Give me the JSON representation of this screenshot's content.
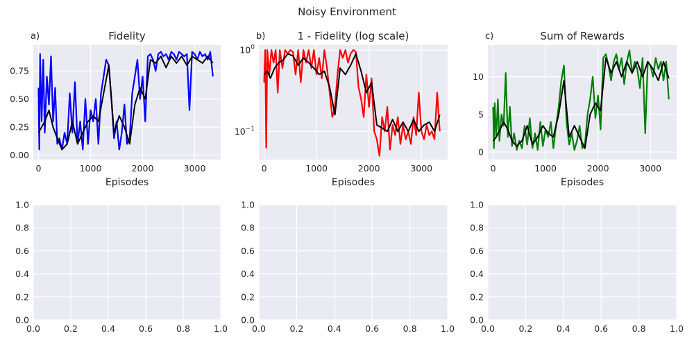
{
  "figure": {
    "suptitle": "Noisy Environment"
  },
  "colors": {
    "axes_bg": "#EAEAF2",
    "grid": "#FFFFFF",
    "fidelity": "#0000FF",
    "infidelity": "#FF0000",
    "rewards": "#008000",
    "smoothed": "#000000"
  },
  "chart_data": [
    {
      "type": "line",
      "corner": "a)",
      "title": "Fidelity",
      "xlabel": "Episodes",
      "xlim": [
        -100,
        3500
      ],
      "ylim": [
        -0.04,
        0.98
      ],
      "yscale": "linear",
      "xticks": [
        0,
        1000,
        2000,
        3000
      ],
      "yticks": [
        0.0,
        0.25,
        0.5,
        0.75
      ],
      "ytick_labels": [
        "0.00",
        "0.25",
        "0.50",
        "0.75"
      ],
      "series": [
        {
          "color": "#0000FF",
          "x": [
            0,
            15,
            30,
            60,
            90,
            120,
            160,
            200,
            240,
            280,
            320,
            360,
            400,
            450,
            500,
            550,
            600,
            650,
            700,
            750,
            800,
            850,
            900,
            950,
            1000,
            1050,
            1100,
            1150,
            1200,
            1250,
            1300,
            1350,
            1400,
            1450,
            1500,
            1550,
            1600,
            1650,
            1700,
            1750,
            1800,
            1850,
            1900,
            1950,
            2000,
            2050,
            2100,
            2150,
            2200,
            2250,
            2300,
            2350,
            2400,
            2450,
            2500,
            2550,
            2600,
            2650,
            2700,
            2750,
            2800,
            2850,
            2900,
            2950,
            3000,
            3050,
            3100,
            3150,
            3200,
            3250,
            3300,
            3350
          ],
          "y": [
            0.6,
            0.05,
            0.9,
            0.3,
            0.85,
            0.2,
            0.7,
            0.45,
            0.88,
            0.3,
            0.6,
            0.1,
            0.15,
            0.05,
            0.2,
            0.1,
            0.55,
            0.2,
            0.65,
            0.1,
            0.3,
            0.05,
            0.5,
            0.1,
            0.4,
            0.3,
            0.5,
            0.1,
            0.55,
            0.7,
            0.85,
            0.8,
            0.5,
            0.15,
            0.3,
            0.05,
            0.2,
            0.45,
            0.1,
            0.15,
            0.55,
            0.7,
            0.85,
            0.5,
            0.7,
            0.3,
            0.88,
            0.9,
            0.85,
            0.75,
            0.9,
            0.92,
            0.88,
            0.9,
            0.85,
            0.92,
            0.9,
            0.85,
            0.92,
            0.9,
            0.88,
            0.9,
            0.4,
            0.92,
            0.9,
            0.85,
            0.92,
            0.88,
            0.9,
            0.85,
            0.92,
            0.7
          ]
        },
        {
          "color": "#000000",
          "x": [
            0,
            60,
            120,
            200,
            280,
            360,
            450,
            550,
            650,
            750,
            850,
            950,
            1050,
            1150,
            1250,
            1350,
            1450,
            1550,
            1650,
            1750,
            1850,
            1950,
            2050,
            2150,
            2250,
            2350,
            2450,
            2550,
            2650,
            2750,
            2850,
            2950,
            3050,
            3150,
            3250,
            3350
          ],
          "y": [
            0.2,
            0.25,
            0.3,
            0.4,
            0.25,
            0.15,
            0.05,
            0.1,
            0.3,
            0.1,
            0.2,
            0.3,
            0.35,
            0.3,
            0.55,
            0.8,
            0.2,
            0.35,
            0.25,
            0.1,
            0.45,
            0.6,
            0.5,
            0.85,
            0.82,
            0.88,
            0.78,
            0.88,
            0.82,
            0.88,
            0.8,
            0.88,
            0.85,
            0.82,
            0.88,
            0.82
          ]
        }
      ]
    },
    {
      "type": "line",
      "corner": "b)",
      "title": "1 - Fidelity (log scale)",
      "xlabel": "Episodes",
      "xlim": [
        -100,
        3500
      ],
      "ylim": [
        0.045,
        1.15
      ],
      "yscale": "log",
      "xticks": [
        0,
        1000,
        2000,
        3000
      ],
      "yticks": [
        0.1,
        1
      ],
      "ytick_labels": [
        "10^-1",
        "10^0"
      ],
      "series": [
        {
          "color": "#FF0000",
          "x": [
            0,
            20,
            40,
            60,
            100,
            140,
            180,
            220,
            260,
            300,
            350,
            400,
            450,
            500,
            550,
            600,
            650,
            700,
            750,
            800,
            850,
            900,
            950,
            1000,
            1050,
            1100,
            1150,
            1200,
            1250,
            1300,
            1350,
            1400,
            1450,
            1500,
            1550,
            1600,
            1650,
            1700,
            1750,
            1800,
            1850,
            1900,
            1950,
            2000,
            2050,
            2100,
            2150,
            2200,
            2250,
            2300,
            2350,
            2400,
            2450,
            2500,
            2550,
            2600,
            2650,
            2700,
            2750,
            2800,
            2850,
            2900,
            2950,
            3000,
            3050,
            3100,
            3150,
            3200,
            3250,
            3300,
            3350
          ],
          "y": [
            0.4,
            1.0,
            0.063,
            1.0,
            0.5,
            1.0,
            0.7,
            1.0,
            0.3,
            1.0,
            0.6,
            1.0,
            0.9,
            1.0,
            0.95,
            0.5,
            1.0,
            0.4,
            1.0,
            0.7,
            1.0,
            0.6,
            1.0,
            0.5,
            0.8,
            0.45,
            1.0,
            0.6,
            0.3,
            0.15,
            0.2,
            0.5,
            1.0,
            0.8,
            1.0,
            0.7,
            0.9,
            1.0,
            0.95,
            0.35,
            0.25,
            0.15,
            0.5,
            0.2,
            0.45,
            0.1,
            0.08,
            0.05,
            0.15,
            0.1,
            0.2,
            0.06,
            0.12,
            0.09,
            0.15,
            0.07,
            0.12,
            0.08,
            0.1,
            0.07,
            0.15,
            0.09,
            0.3,
            0.1,
            0.08,
            0.12,
            0.09,
            0.1,
            0.08,
            0.3,
            0.1
          ]
        },
        {
          "color": "#000000",
          "x": [
            0,
            60,
            120,
            200,
            280,
            360,
            450,
            550,
            650,
            750,
            850,
            950,
            1050,
            1150,
            1250,
            1350,
            1450,
            1550,
            1650,
            1750,
            1850,
            1950,
            2050,
            2150,
            2250,
            2350,
            2450,
            2550,
            2650,
            2750,
            2850,
            2950,
            3050,
            3150,
            3250,
            3350
          ],
          "y": [
            0.5,
            0.55,
            0.45,
            0.6,
            0.7,
            0.75,
            0.9,
            0.85,
            0.65,
            0.8,
            0.7,
            0.6,
            0.5,
            0.55,
            0.35,
            0.16,
            0.6,
            0.5,
            0.65,
            0.9,
            0.55,
            0.3,
            0.4,
            0.12,
            0.11,
            0.1,
            0.14,
            0.1,
            0.13,
            0.1,
            0.14,
            0.1,
            0.12,
            0.13,
            0.1,
            0.16
          ]
        }
      ]
    },
    {
      "type": "line",
      "corner": "c)",
      "title": "Sum of Rewards",
      "xlabel": "Episodes",
      "xlim": [
        -100,
        3500
      ],
      "ylim": [
        -1.0,
        14.2
      ],
      "yscale": "linear",
      "xticks": [
        0,
        1000,
        2000,
        3000
      ],
      "yticks": [
        0,
        5,
        10
      ],
      "ytick_labels": [
        "0",
        "5",
        "10"
      ],
      "series": [
        {
          "color": "#008000",
          "x": [
            0,
            15,
            30,
            60,
            90,
            120,
            160,
            200,
            240,
            280,
            320,
            360,
            400,
            450,
            500,
            550,
            600,
            650,
            700,
            750,
            800,
            850,
            900,
            950,
            1000,
            1050,
            1100,
            1150,
            1200,
            1250,
            1300,
            1350,
            1400,
            1450,
            1500,
            1550,
            1600,
            1650,
            1700,
            1750,
            1800,
            1850,
            1900,
            1950,
            2000,
            2050,
            2100,
            2150,
            2200,
            2250,
            2300,
            2350,
            2400,
            2450,
            2500,
            2550,
            2600,
            2650,
            2700,
            2750,
            2800,
            2850,
            2900,
            2950,
            3000,
            3050,
            3100,
            3150,
            3200,
            3250,
            3300,
            3350
          ],
          "y": [
            6.0,
            0.5,
            6.5,
            2.0,
            7.0,
            1.5,
            5.0,
            3.5,
            10.5,
            2.0,
            6.0,
            0.8,
            2.5,
            0.3,
            1.5,
            0.5,
            3.5,
            1.0,
            4.5,
            0.5,
            2.5,
            0.3,
            4.0,
            0.8,
            3.0,
            2.0,
            4.0,
            0.5,
            3.5,
            6.0,
            9.5,
            11.5,
            4.0,
            1.0,
            2.5,
            0.3,
            1.5,
            3.5,
            0.5,
            1.0,
            5.0,
            7.0,
            10.0,
            4.5,
            7.5,
            3.0,
            12.5,
            13.0,
            11.5,
            9.5,
            12.0,
            13.0,
            11.0,
            12.5,
            9.0,
            12.0,
            13.5,
            10.5,
            12.0,
            11.0,
            8.5,
            12.5,
            2.5,
            12.0,
            11.5,
            10.0,
            12.5,
            11.0,
            12.0,
            9.5,
            12.0,
            7.0
          ]
        },
        {
          "color": "#000000",
          "x": [
            0,
            60,
            120,
            200,
            280,
            360,
            450,
            550,
            650,
            750,
            850,
            950,
            1050,
            1150,
            1250,
            1350,
            1450,
            1550,
            1650,
            1750,
            1850,
            1950,
            2050,
            2150,
            2250,
            2350,
            2450,
            2550,
            2650,
            2750,
            2850,
            2950,
            3050,
            3150,
            3250,
            3350
          ],
          "y": [
            1.5,
            2.0,
            2.8,
            4.0,
            3.0,
            1.5,
            0.8,
            1.5,
            3.5,
            1.0,
            2.0,
            3.5,
            2.5,
            2.0,
            5.0,
            9.5,
            2.0,
            3.5,
            2.0,
            0.5,
            5.0,
            6.5,
            5.5,
            12.5,
            10.5,
            12.0,
            10.0,
            12.0,
            10.5,
            12.0,
            10.0,
            12.0,
            11.0,
            9.5,
            12.0,
            9.8
          ]
        }
      ]
    },
    {
      "type": "line",
      "xlim": [
        0,
        1.0
      ],
      "ylim": [
        0,
        1.0
      ],
      "yscale": "linear",
      "xticks": [
        0.0,
        0.2,
        0.4,
        0.6,
        0.8,
        1.0
      ],
      "xtick_labels": [
        "0.0",
        "0.2",
        "0.4",
        "0.6",
        "0.8",
        "1.0"
      ],
      "yticks": [
        0.0,
        0.2,
        0.4,
        0.6,
        0.8,
        1.0
      ],
      "ytick_labels": [
        "0.0",
        "0.2",
        "0.4",
        "0.6",
        "0.8",
        "1.0"
      ],
      "series": []
    },
    {
      "type": "line",
      "xlim": [
        0,
        1.0
      ],
      "ylim": [
        0,
        1.0
      ],
      "yscale": "linear",
      "xticks": [
        0.0,
        0.2,
        0.4,
        0.6,
        0.8,
        1.0
      ],
      "xtick_labels": [
        "0.0",
        "0.2",
        "0.4",
        "0.6",
        "0.8",
        "1.0"
      ],
      "yticks": [
        0.0,
        0.2,
        0.4,
        0.6,
        0.8,
        1.0
      ],
      "ytick_labels": [
        "0.0",
        "0.2",
        "0.4",
        "0.6",
        "0.8",
        "1.0"
      ],
      "series": []
    },
    {
      "type": "line",
      "xlim": [
        0,
        1.0
      ],
      "ylim": [
        0,
        1.0
      ],
      "yscale": "linear",
      "xticks": [
        0.0,
        0.2,
        0.4,
        0.6,
        0.8,
        1.0
      ],
      "xtick_labels": [
        "0.0",
        "0.2",
        "0.4",
        "0.6",
        "0.8",
        "1.0"
      ],
      "yticks": [
        0.0,
        0.2,
        0.4,
        0.6,
        0.8,
        1.0
      ],
      "ytick_labels": [
        "0.0",
        "0.2",
        "0.4",
        "0.6",
        "0.8",
        "1.0"
      ],
      "series": []
    }
  ]
}
